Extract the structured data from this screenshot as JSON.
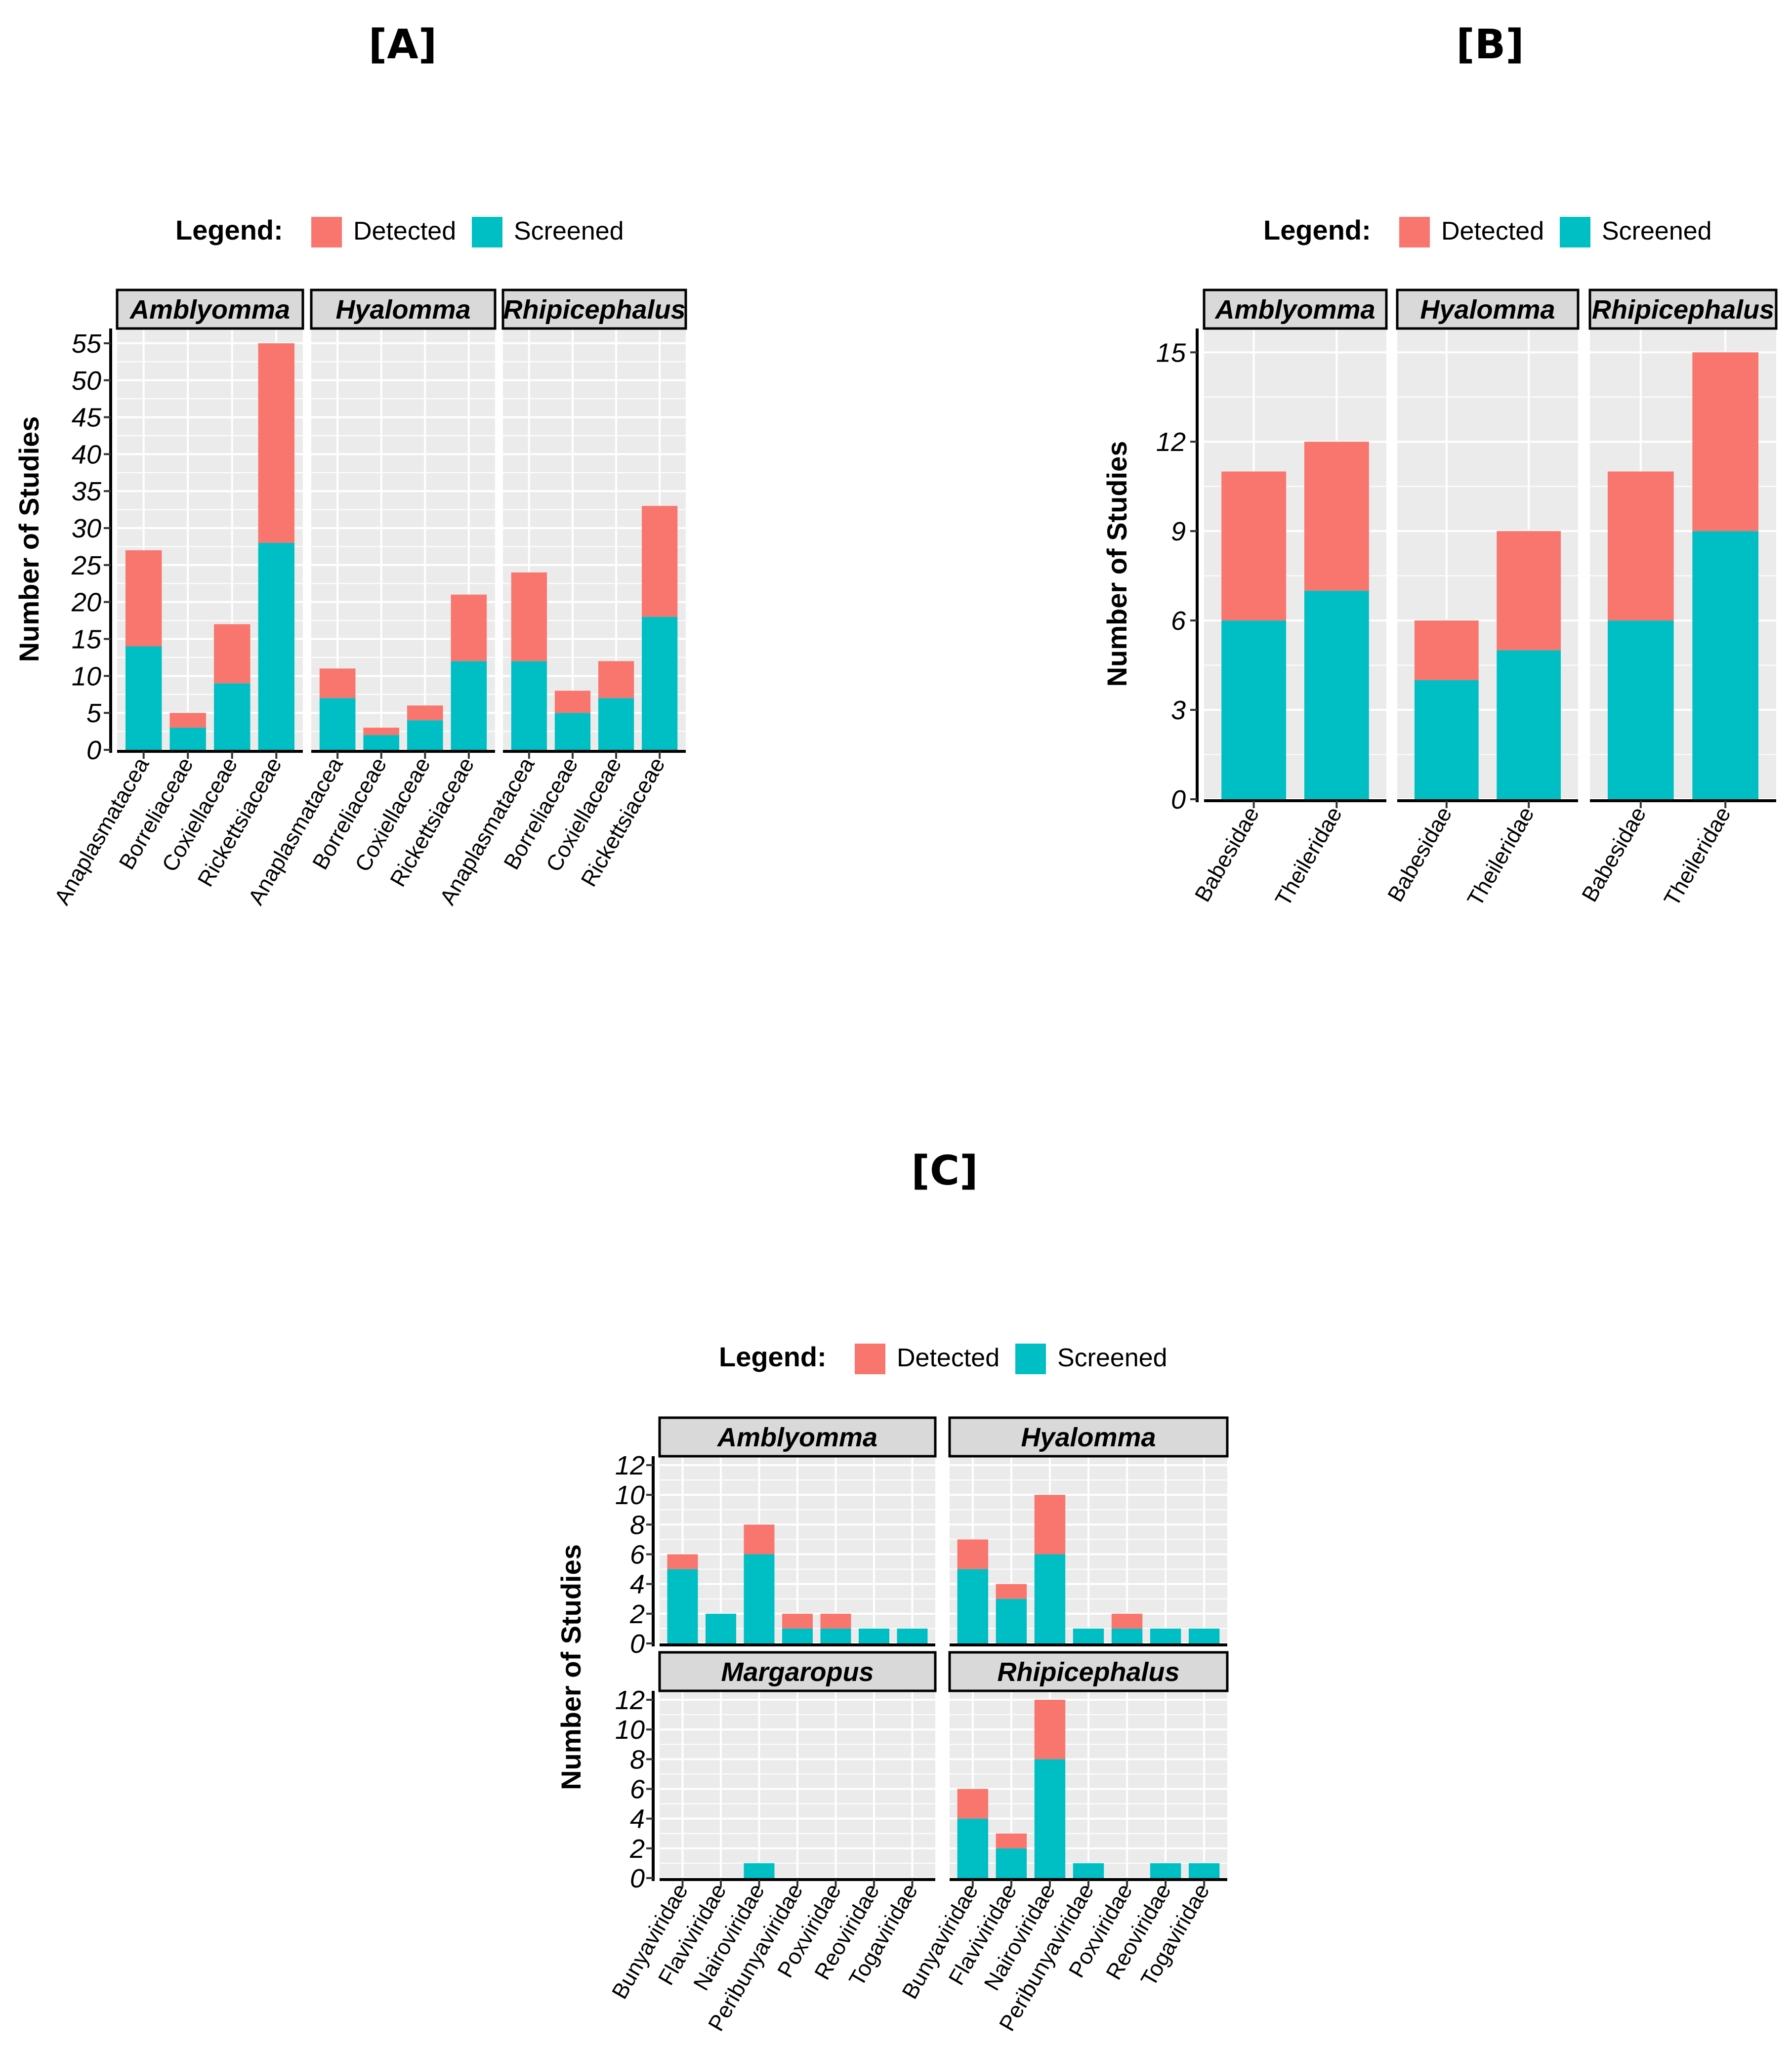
{
  "colors": {
    "detected": "#F8766D",
    "screened": "#00BFC4",
    "panel_bg": "#EBEBEB",
    "strip_bg": "#D9D9D9"
  },
  "chart_data": [
    {
      "id": "A",
      "label": "[A]",
      "type": "bar",
      "stacked": true,
      "legend": {
        "title": "Legend:",
        "entries": [
          "Detected",
          "Screened"
        ],
        "position": "top"
      },
      "ylabel": "Number of Studies",
      "xlabel": "",
      "ylim": [
        0,
        57
      ],
      "yticks": [
        0,
        5,
        10,
        15,
        20,
        25,
        30,
        35,
        40,
        45,
        50,
        55
      ],
      "categories": [
        "Anaplasmatacea",
        "Borreliaceae",
        "Coxiellaceae",
        "Rickettsiaceae"
      ],
      "facets": [
        {
          "title": "Amblyomma",
          "series": [
            {
              "name": "Screened",
              "values": [
                14,
                3,
                9,
                28
              ]
            },
            {
              "name": "Detected",
              "values": [
                13,
                2,
                8,
                27
              ]
            }
          ]
        },
        {
          "title": "Hyalomma",
          "series": [
            {
              "name": "Screened",
              "values": [
                7,
                2,
                4,
                12
              ]
            },
            {
              "name": "Detected",
              "values": [
                4,
                1,
                2,
                9
              ]
            }
          ]
        },
        {
          "title": "Rhipicephalus",
          "series": [
            {
              "name": "Screened",
              "values": [
                12,
                5,
                7,
                18
              ]
            },
            {
              "name": "Detected",
              "values": [
                12,
                3,
                5,
                15
              ]
            }
          ]
        }
      ]
    },
    {
      "id": "B",
      "label": "[B]",
      "type": "bar",
      "stacked": true,
      "legend": {
        "title": "Legend:",
        "entries": [
          "Detected",
          "Screened"
        ],
        "position": "top"
      },
      "ylabel": "Number of Studies",
      "xlabel": "",
      "ylim": [
        0,
        15.8
      ],
      "yticks": [
        0,
        3,
        6,
        9,
        12,
        15
      ],
      "categories": [
        "Babesidae",
        "Theileridae"
      ],
      "facets": [
        {
          "title": "Amblyomma",
          "series": [
            {
              "name": "Screened",
              "values": [
                6,
                7
              ]
            },
            {
              "name": "Detected",
              "values": [
                5,
                5
              ]
            }
          ]
        },
        {
          "title": "Hyalomma",
          "series": [
            {
              "name": "Screened",
              "values": [
                4,
                5
              ]
            },
            {
              "name": "Detected",
              "values": [
                2,
                4
              ]
            }
          ]
        },
        {
          "title": "Rhipicephalus",
          "series": [
            {
              "name": "Screened",
              "values": [
                6,
                9
              ]
            },
            {
              "name": "Detected",
              "values": [
                5,
                6
              ]
            }
          ]
        }
      ]
    },
    {
      "id": "C",
      "label": "[C]",
      "type": "bar",
      "stacked": true,
      "legend": {
        "title": "Legend:",
        "entries": [
          "Detected",
          "Screened"
        ],
        "position": "top"
      },
      "ylabel": "Number of Studies",
      "xlabel": "",
      "ylim": [
        0,
        12.6
      ],
      "yticks": [
        0,
        2,
        4,
        6,
        8,
        10,
        12
      ],
      "categories": [
        "Bunyaviridae",
        "Flaviviridae",
        "Nairoviridae",
        "Peribunyaviridae",
        "Poxviridae",
        "Reoviridae",
        "Togaviridae"
      ],
      "facets": [
        {
          "title": "Amblyomma",
          "series": [
            {
              "name": "Screened",
              "values": [
                5,
                2,
                6,
                1,
                1,
                1,
                1
              ]
            },
            {
              "name": "Detected",
              "values": [
                1,
                0,
                2,
                1,
                1,
                0,
                0
              ]
            }
          ]
        },
        {
          "title": "Hyalomma",
          "series": [
            {
              "name": "Screened",
              "values": [
                5,
                3,
                6,
                1,
                1,
                1,
                1
              ]
            },
            {
              "name": "Detected",
              "values": [
                2,
                1,
                4,
                0,
                1,
                0,
                0
              ]
            }
          ]
        },
        {
          "title": "Margaropus",
          "series": [
            {
              "name": "Screened",
              "values": [
                0,
                0,
                1,
                0,
                0,
                0,
                0
              ]
            },
            {
              "name": "Detected",
              "values": [
                0,
                0,
                0,
                0,
                0,
                0,
                0
              ]
            }
          ]
        },
        {
          "title": "Rhipicephalus",
          "series": [
            {
              "name": "Screened",
              "values": [
                4,
                2,
                8,
                1,
                0,
                1,
                1
              ]
            },
            {
              "name": "Detected",
              "values": [
                2,
                1,
                4,
                0,
                0,
                0,
                0
              ]
            }
          ]
        }
      ]
    }
  ]
}
